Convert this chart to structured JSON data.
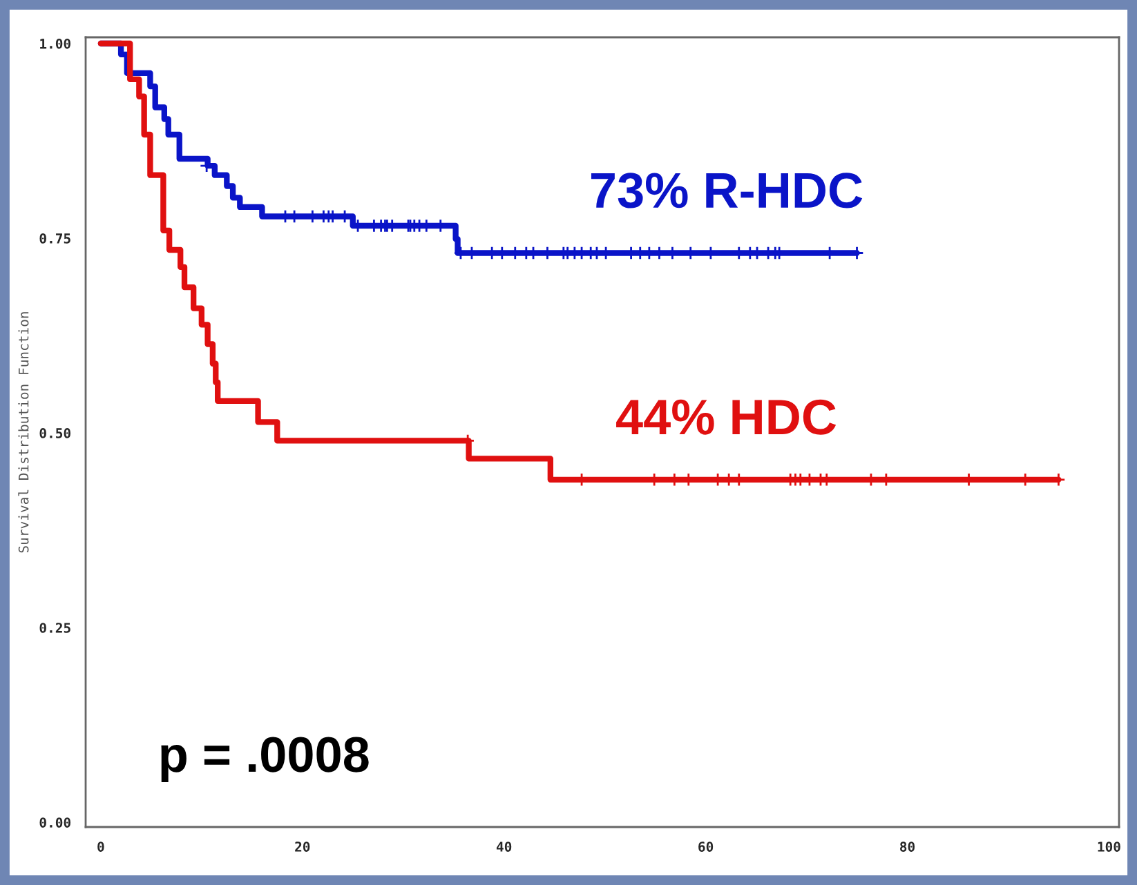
{
  "chart_data": {
    "type": "step",
    "ylabel": "Survival Distribution Function",
    "xlim": [
      -1.5,
      101
    ],
    "ylim": [
      -0.006,
      1.008
    ],
    "xticks": [
      0,
      20,
      40,
      60,
      80,
      100
    ],
    "yticks": [
      {
        "value": 0,
        "label": "0.00"
      },
      {
        "value": 0.25,
        "label": "0.25"
      },
      {
        "value": 0.5,
        "label": "0.50"
      },
      {
        "value": 0.75,
        "label": "0.75"
      },
      {
        "value": 1,
        "label": "1.00"
      }
    ],
    "grid": false,
    "legend": false,
    "series": [
      {
        "name": "73% R-HDC",
        "color": "#0a14c8",
        "x": [
          0,
          2.0,
          2.6,
          4.9,
          5.4,
          6.3,
          6.7,
          7.8,
          10.6,
          11.3,
          12.5,
          13.1,
          13.8,
          16.0,
          25.0,
          35.2,
          35.4,
          75
        ],
        "values": [
          1.0,
          0.986,
          0.962,
          0.945,
          0.918,
          0.903,
          0.883,
          0.852,
          0.843,
          0.831,
          0.817,
          0.802,
          0.79,
          0.778,
          0.766,
          0.749,
          0.731,
          0.731
        ]
      },
      {
        "name": "44% HDC",
        "color": "#e01010",
        "x": [
          0,
          2.9,
          3.8,
          4.3,
          4.9,
          6.2,
          6.8,
          7.9,
          8.3,
          9.2,
          10.0,
          10.6,
          11.1,
          11.4,
          11.6,
          15.6,
          17.5,
          36.5,
          44.6,
          95
        ],
        "values": [
          1.0,
          0.954,
          0.932,
          0.883,
          0.831,
          0.76,
          0.735,
          0.713,
          0.687,
          0.66,
          0.639,
          0.614,
          0.589,
          0.565,
          0.541,
          0.514,
          0.49,
          0.467,
          0.44,
          0.44
        ]
      },
      {
        "type": "scatter",
        "marker": "cross",
        "color": "#0a14c8",
        "x": [
          10.5,
          18.3,
          19.2,
          21.0,
          22.1,
          22.6,
          23.0,
          24.2,
          25.5,
          27.1,
          27.8,
          28.2,
          28.4,
          28.9,
          30.5,
          30.7,
          31.1,
          31.6,
          32.3,
          33.7,
          35.7,
          36.8,
          38.8,
          39.8,
          41.1,
          42.2,
          42.9,
          44.3,
          45.9,
          46.3,
          47.0,
          47.7,
          48.6,
          49.2,
          50.1,
          52.6,
          53.5,
          54.4,
          55.4,
          56.7,
          58.5,
          60.5,
          63.3,
          64.4,
          65.1,
          66.2,
          66.9,
          67.3,
          72.3,
          75
        ],
        "values": [
          0.843,
          0.778,
          0.778,
          0.778,
          0.778,
          0.778,
          0.778,
          0.778,
          0.766,
          0.766,
          0.766,
          0.766,
          0.766,
          0.766,
          0.766,
          0.766,
          0.766,
          0.766,
          0.766,
          0.766,
          0.731,
          0.731,
          0.731,
          0.731,
          0.731,
          0.731,
          0.731,
          0.731,
          0.731,
          0.731,
          0.731,
          0.731,
          0.731,
          0.731,
          0.731,
          0.731,
          0.731,
          0.731,
          0.731,
          0.731,
          0.731,
          0.731,
          0.731,
          0.731,
          0.731,
          0.731,
          0.731,
          0.731,
          0.731,
          0.731
        ]
      },
      {
        "type": "scatter",
        "marker": "cross",
        "color": "#e01010",
        "x": [
          36.4,
          47.7,
          54.9,
          56.9,
          58.3,
          61.2,
          62.3,
          63.3,
          68.4,
          68.9,
          69.4,
          70.3,
          71.4,
          72.0,
          76.4,
          77.9,
          86.1,
          91.7,
          95
        ],
        "values": [
          0.49,
          0.44,
          0.44,
          0.44,
          0.44,
          0.44,
          0.44,
          0.44,
          0.44,
          0.44,
          0.44,
          0.44,
          0.44,
          0.44,
          0.44,
          0.44,
          0.44,
          0.44,
          0.44
        ]
      }
    ],
    "annotations": [
      "p = .0008"
    ]
  }
}
